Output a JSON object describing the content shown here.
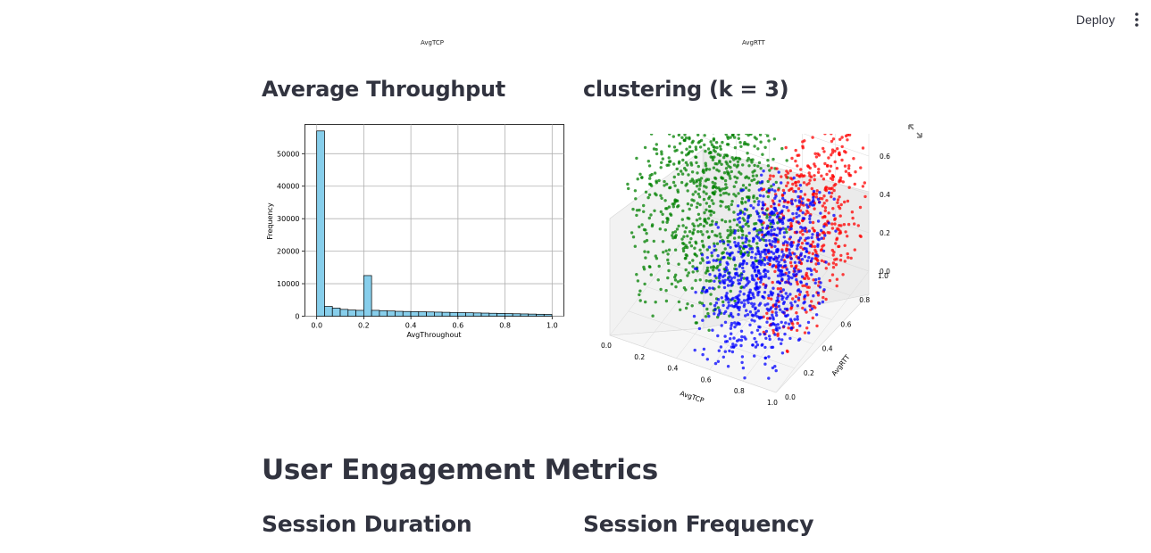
{
  "toolbar": {
    "deploy_label": "Deploy",
    "menu_icon": "kebab-menu-icon"
  },
  "top_labels": {
    "left": "AvgTCP",
    "right": "AvgRTT"
  },
  "sections": {
    "throughput_title": "Average Throughput",
    "clustering_title": "clustering (k = 3)",
    "engagement_title": "User Engagement Metrics",
    "session_duration_title": "Session Duration",
    "session_frequency_title": "Session Frequency"
  },
  "expand_icon": "expand-icon",
  "chart_data": [
    {
      "type": "bar",
      "title": "",
      "xlabel": "AvgThroughout",
      "ylabel": "Frequency",
      "xlim": [
        -0.05,
        1.05
      ],
      "ylim": [
        0,
        59000
      ],
      "grid": true,
      "xticks": [
        0.0,
        0.2,
        0.4,
        0.6,
        0.8,
        1.0
      ],
      "yticks": [
        0,
        10000,
        20000,
        30000,
        40000,
        50000
      ],
      "bin_width": 0.0333,
      "bin_start": 0.0,
      "values": [
        57000,
        3000,
        2500,
        2100,
        1900,
        1800,
        12500,
        1800,
        1700,
        1600,
        1500,
        1450,
        1400,
        1350,
        1300,
        1250,
        1200,
        1150,
        1100,
        1050,
        1000,
        950,
        900,
        850,
        800,
        750,
        700,
        650,
        600,
        550
      ],
      "color": "#87ceeb"
    },
    {
      "type": "scatter",
      "title": "",
      "projection": "3d",
      "xlabel": "AvgTCP",
      "ylabel": "AvgRTT",
      "zlabel": "AvgThroughput",
      "xticks": [
        0.0,
        0.2,
        0.4,
        0.6,
        0.8,
        1.0
      ],
      "yticks": [
        0.0,
        0.2,
        0.4,
        0.6,
        0.8,
        1.0
      ],
      "zticks": [
        0.0,
        0.2,
        0.4,
        0.6,
        0.8,
        1.0
      ],
      "xtick_labels": [
        "0.0",
        "0.2",
        "0.4",
        "0.6",
        "0.8",
        "1.0"
      ],
      "ytick_labels": [
        "0.0",
        "0.2",
        "0.4",
        "0.6",
        "0.8",
        "1.0"
      ],
      "ztick_labels": [
        "0.0",
        "0.2",
        "0.4",
        "0.6",
        "0.8",
        "1.0"
      ],
      "series": [
        {
          "color": "#008000"
        },
        {
          "color": "#0000ff"
        },
        {
          "color": "#ff0000"
        }
      ]
    }
  ]
}
